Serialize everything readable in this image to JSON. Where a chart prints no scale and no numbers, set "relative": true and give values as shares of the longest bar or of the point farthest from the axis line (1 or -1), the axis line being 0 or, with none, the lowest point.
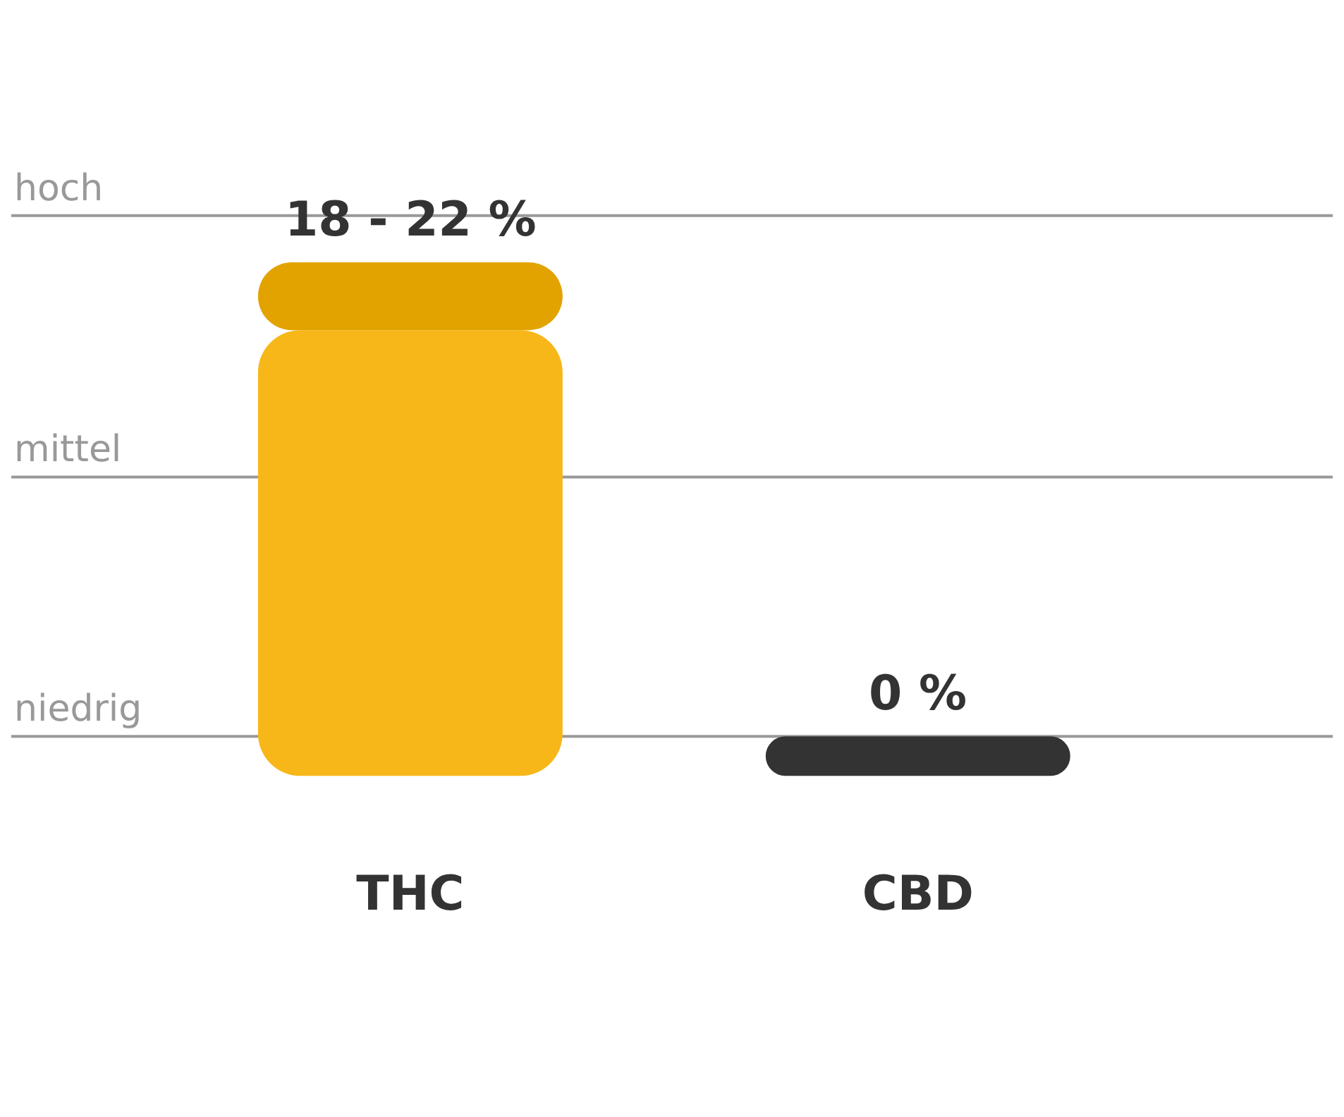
{
  "chart_data": {
    "type": "bar",
    "categories": [
      "THC",
      "CBD"
    ],
    "relative": true,
    "stacked": true,
    "series": [
      {
        "color": "#f7b718",
        "values": [
          0.868,
          null
        ]
      },
      {
        "color": "#e2a300",
        "values": [
          0.132,
          null
        ]
      },
      {
        "color": "#333333",
        "values": [
          null,
          0.077
        ]
      }
    ],
    "ref_lines": [
      {
        "axis": "y",
        "value": 0.077,
        "label": "niedrig",
        "color": "#999999"
      },
      {
        "axis": "y",
        "value": 0.582,
        "label": "mittel",
        "color": "#999999"
      },
      {
        "axis": "y",
        "value": 1.091,
        "label": "hoch",
        "color": "#999999"
      }
    ],
    "annotations": [
      "18 - 22 %",
      "0 %"
    ]
  }
}
